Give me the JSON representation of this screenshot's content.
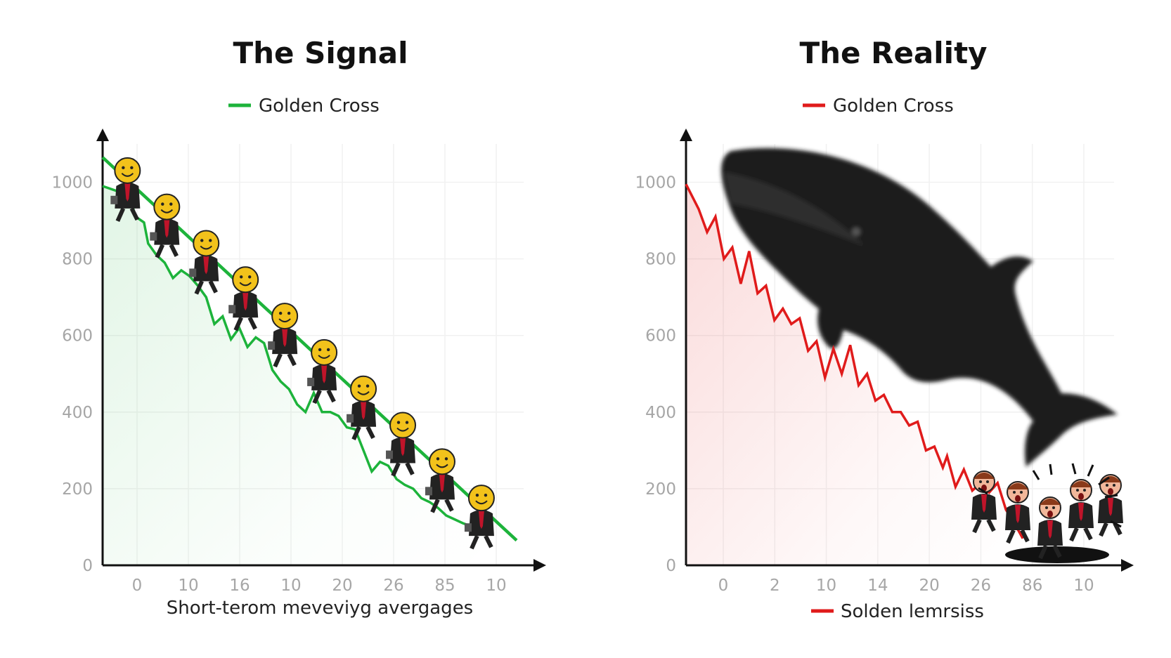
{
  "chart_data": [
    {
      "type": "line",
      "title": "The Signal",
      "legend": {
        "label": "Golden Cross",
        "color": "#1db33b",
        "placement": "top-center"
      },
      "xlabel": "Short-terom meveviyg avergages",
      "ylabel": "",
      "ylim": [
        0,
        1100
      ],
      "y_ticks": [
        0,
        200,
        400,
        600,
        800,
        1000
      ],
      "x_tick_labels": [
        "0",
        "10",
        "16",
        "10",
        "20",
        "26",
        "85",
        "10"
      ],
      "grid": true,
      "series": [
        {
          "name": "Golden Cross",
          "color": "#1db33b",
          "style": "straight-trend",
          "x": [
            0,
            100
          ],
          "values": [
            1065,
            65
          ]
        },
        {
          "color": "#1db33b",
          "style": "jagged",
          "x": [
            0,
            4,
            6,
            8,
            10,
            11,
            13,
            15,
            17,
            19,
            21,
            23,
            25,
            27,
            29,
            31,
            33,
            35,
            37,
            39,
            41,
            43,
            45,
            47,
            49,
            51,
            53,
            55,
            57,
            59,
            61,
            63,
            65,
            67,
            69,
            71,
            73,
            75,
            77,
            79,
            81,
            83,
            85,
            87,
            89,
            91,
            93
          ],
          "values": [
            990,
            975,
            980,
            910,
            895,
            840,
            810,
            790,
            750,
            770,
            755,
            730,
            700,
            630,
            650,
            590,
            620,
            570,
            595,
            580,
            510,
            480,
            460,
            420,
            400,
            450,
            400,
            400,
            390,
            360,
            355,
            300,
            245,
            270,
            260,
            225,
            210,
            200,
            175,
            165,
            150,
            130,
            120,
            110,
            102,
            95,
            88
          ]
        }
      ]
    },
    {
      "type": "line",
      "title": "The Reality",
      "legend": {
        "label": "Golden Cross",
        "color": "#e01b1b",
        "placement": "top-center"
      },
      "bottom_legend": {
        "label": "Solden lemrsiss",
        "color": "#e01b1b"
      },
      "xlabel": "",
      "ylabel": "",
      "ylim": [
        0,
        1100
      ],
      "y_ticks": [
        0,
        200,
        400,
        600,
        800,
        1000
      ],
      "x_tick_labels": [
        "0",
        "2",
        "10",
        "14",
        "20",
        "26",
        "86",
        "10"
      ],
      "grid": true,
      "series": [
        {
          "name": "Golden Cross",
          "color": "#e01b1b",
          "style": "jagged",
          "x": [
            0,
            3,
            5,
            7,
            9,
            11,
            13,
            15,
            17,
            19,
            21,
            23,
            25,
            27,
            29,
            31,
            33,
            35,
            37,
            39,
            41,
            43,
            45,
            47,
            49,
            51,
            53,
            55,
            57,
            59,
            61,
            62,
            64,
            66,
            68,
            70,
            72,
            74,
            76,
            78,
            80
          ],
          "values": [
            995,
            930,
            870,
            910,
            800,
            830,
            735,
            820,
            710,
            730,
            640,
            670,
            630,
            645,
            560,
            585,
            490,
            565,
            500,
            575,
            470,
            500,
            430,
            445,
            400,
            400,
            365,
            375,
            300,
            310,
            255,
            285,
            205,
            250,
            195,
            215,
            190,
            215,
            145,
            110,
            70
          ]
        }
      ],
      "annotations": [
        "whale-silhouette",
        "shocked-investors"
      ]
    }
  ]
}
